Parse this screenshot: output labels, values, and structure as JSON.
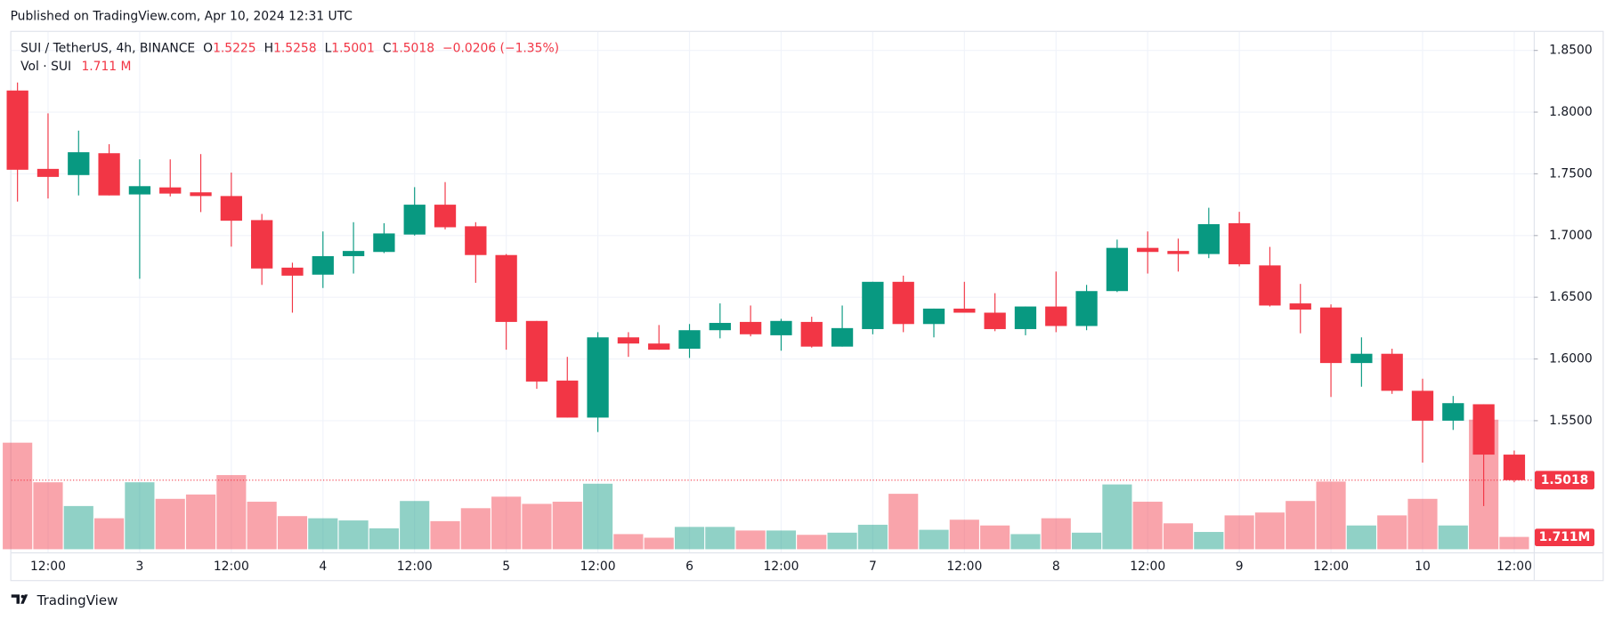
{
  "published": "Published on TradingView.com, Apr 10, 2024 12:31 UTC",
  "brand": "TradingView",
  "chart_data": {
    "type": "candlestick",
    "symbol": "SUI / TetherUS, 4h, BINANCE",
    "legend_labels": {
      "open": "O",
      "high": "H",
      "low": "L",
      "close": "C"
    },
    "change": "−0.0206 (−1.35%)",
    "up_color": "#089981",
    "down_color": "#f23645",
    "categories": [
      null,
      "12:00",
      null,
      null,
      "3",
      null,
      null,
      "12:00",
      null,
      null,
      "4",
      null,
      null,
      "12:00",
      null,
      null,
      "5",
      null,
      null,
      "12:00",
      null,
      null,
      "6",
      null,
      null,
      "12:00",
      null,
      null,
      "7",
      null,
      null,
      "12:00",
      null,
      null,
      "8",
      null,
      null,
      "12:00",
      null,
      null,
      "9",
      null,
      null,
      "12:00",
      null,
      null,
      "10",
      null,
      null,
      "12:00"
    ],
    "open": [
      1.8175,
      1.754,
      1.749,
      1.7667,
      1.7333,
      1.739,
      1.735,
      1.732,
      1.7125,
      1.674,
      1.6683,
      1.6833,
      1.6867,
      1.7008,
      1.725,
      1.7075,
      1.6842,
      1.6308,
      1.5825,
      1.5525,
      1.6175,
      1.6125,
      1.6083,
      1.6233,
      1.63,
      1.6192,
      1.63,
      1.61,
      1.6242,
      1.6625,
      1.6283,
      1.6408,
      1.6375,
      1.6242,
      1.6425,
      1.6267,
      1.655,
      1.69,
      1.6875,
      1.685,
      1.71,
      1.6758,
      1.645,
      1.6417,
      1.5967,
      1.6042,
      1.5742,
      1.55,
      1.5633,
      1.5225
    ],
    "high": [
      1.824,
      1.799,
      1.785,
      1.774,
      1.7617,
      1.7617,
      1.766,
      1.751,
      1.7175,
      1.678,
      1.7033,
      1.7108,
      1.71,
      1.7392,
      1.7433,
      1.7108,
      1.685,
      1.6308,
      1.6017,
      1.6217,
      1.6217,
      1.6275,
      1.6283,
      1.645,
      1.6433,
      1.6325,
      1.6342,
      1.6433,
      1.6625,
      1.6675,
      1.6408,
      1.6625,
      1.6533,
      1.6425,
      1.6708,
      1.66,
      1.6967,
      1.7033,
      1.6975,
      1.7225,
      1.7192,
      1.6908,
      1.6608,
      1.6442,
      1.6175,
      1.6083,
      1.584,
      1.57,
      1.5633,
      1.5258
    ],
    "low": [
      1.7275,
      1.73,
      1.7325,
      1.7325,
      1.665,
      1.7317,
      1.719,
      1.691,
      1.66,
      1.6375,
      1.6575,
      1.6692,
      1.6858,
      1.7,
      1.705,
      1.6617,
      1.6075,
      1.5758,
      1.5525,
      1.5408,
      1.6017,
      1.6075,
      1.6008,
      1.6167,
      1.6183,
      1.6067,
      1.6092,
      1.61,
      1.62,
      1.6217,
      1.6175,
      1.6375,
      1.6225,
      1.6192,
      1.6217,
      1.6233,
      1.6542,
      1.6692,
      1.6708,
      1.6817,
      1.675,
      1.6425,
      1.6208,
      1.5692,
      1.5775,
      1.5717,
      1.516,
      1.5425,
      1.4808,
      1.5001
    ],
    "close": [
      1.7533,
      1.7475,
      1.7675,
      1.7325,
      1.74,
      1.734,
      1.732,
      1.712,
      1.6733,
      1.6675,
      1.6833,
      1.6875,
      1.7017,
      1.725,
      1.7067,
      1.6842,
      1.63,
      1.5817,
      1.5525,
      1.6175,
      1.6125,
      1.6075,
      1.6233,
      1.6292,
      1.62,
      1.6308,
      1.61,
      1.625,
      1.6625,
      1.6283,
      1.6408,
      1.6375,
      1.6242,
      1.6425,
      1.6267,
      1.655,
      1.69,
      1.6867,
      1.685,
      1.7092,
      1.6767,
      1.6433,
      1.64,
      1.5967,
      1.6042,
      1.5742,
      1.55,
      1.5642,
      1.5225,
      1.5018
    ],
    "volume_title": "Vol · SUI",
    "volume": [
      14.8,
      9.3,
      6.0,
      4.3,
      9.3,
      7.0,
      7.6,
      10.3,
      6.6,
      4.6,
      4.3,
      4.0,
      2.9,
      6.7,
      3.9,
      5.7,
      7.3,
      6.3,
      6.6,
      9.1,
      2.1,
      1.6,
      3.1,
      3.1,
      2.6,
      2.6,
      2.0,
      2.3,
      3.4,
      7.7,
      2.7,
      4.1,
      3.3,
      2.1,
      4.3,
      2.3,
      9.0,
      6.6,
      3.6,
      2.4,
      4.7,
      5.1,
      6.7,
      9.4,
      3.3,
      4.7,
      7.0,
      3.3,
      18.0,
      1.711
    ],
    "volume_legend_label": "1.711 M",
    "volume_tag_label": "1.711M",
    "ylim": [
      1.44,
      1.86
    ],
    "yticks": [
      {
        "value": 1.85,
        "label": "1.8500"
      },
      {
        "value": 1.8,
        "label": "1.8000"
      },
      {
        "value": 1.75,
        "label": "1.7500"
      },
      {
        "value": 1.7,
        "label": "1.7000"
      },
      {
        "value": 1.65,
        "label": "1.6500"
      },
      {
        "value": 1.6,
        "label": "1.6000"
      },
      {
        "value": 1.55,
        "label": "1.5500"
      }
    ],
    "grid": true
  }
}
